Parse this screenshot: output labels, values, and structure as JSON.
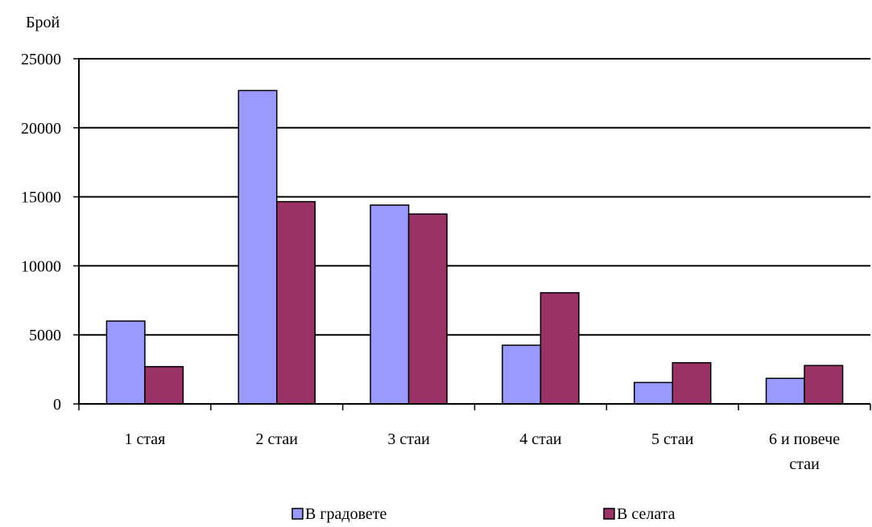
{
  "chart_data": {
    "type": "bar",
    "ylabel": "Брой",
    "ylim": [
      0,
      25000
    ],
    "yticks": [
      0,
      5000,
      10000,
      15000,
      20000,
      25000
    ],
    "grid": true,
    "legend_position": "bottom",
    "categories": [
      [
        "1 стая"
      ],
      [
        "2 стаи"
      ],
      [
        "3 стаи"
      ],
      [
        "4 стаи"
      ],
      [
        "5 стаи"
      ],
      [
        "6 и повече",
        "стаи"
      ]
    ],
    "series": [
      {
        "name": "В градовете",
        "color": "#9999ff",
        "values": [
          6000,
          22700,
          14400,
          4250,
          1550,
          1850
        ]
      },
      {
        "name": "В селата",
        "color": "#993366",
        "values": [
          2700,
          14650,
          13750,
          8050,
          2980,
          2780
        ]
      }
    ]
  }
}
